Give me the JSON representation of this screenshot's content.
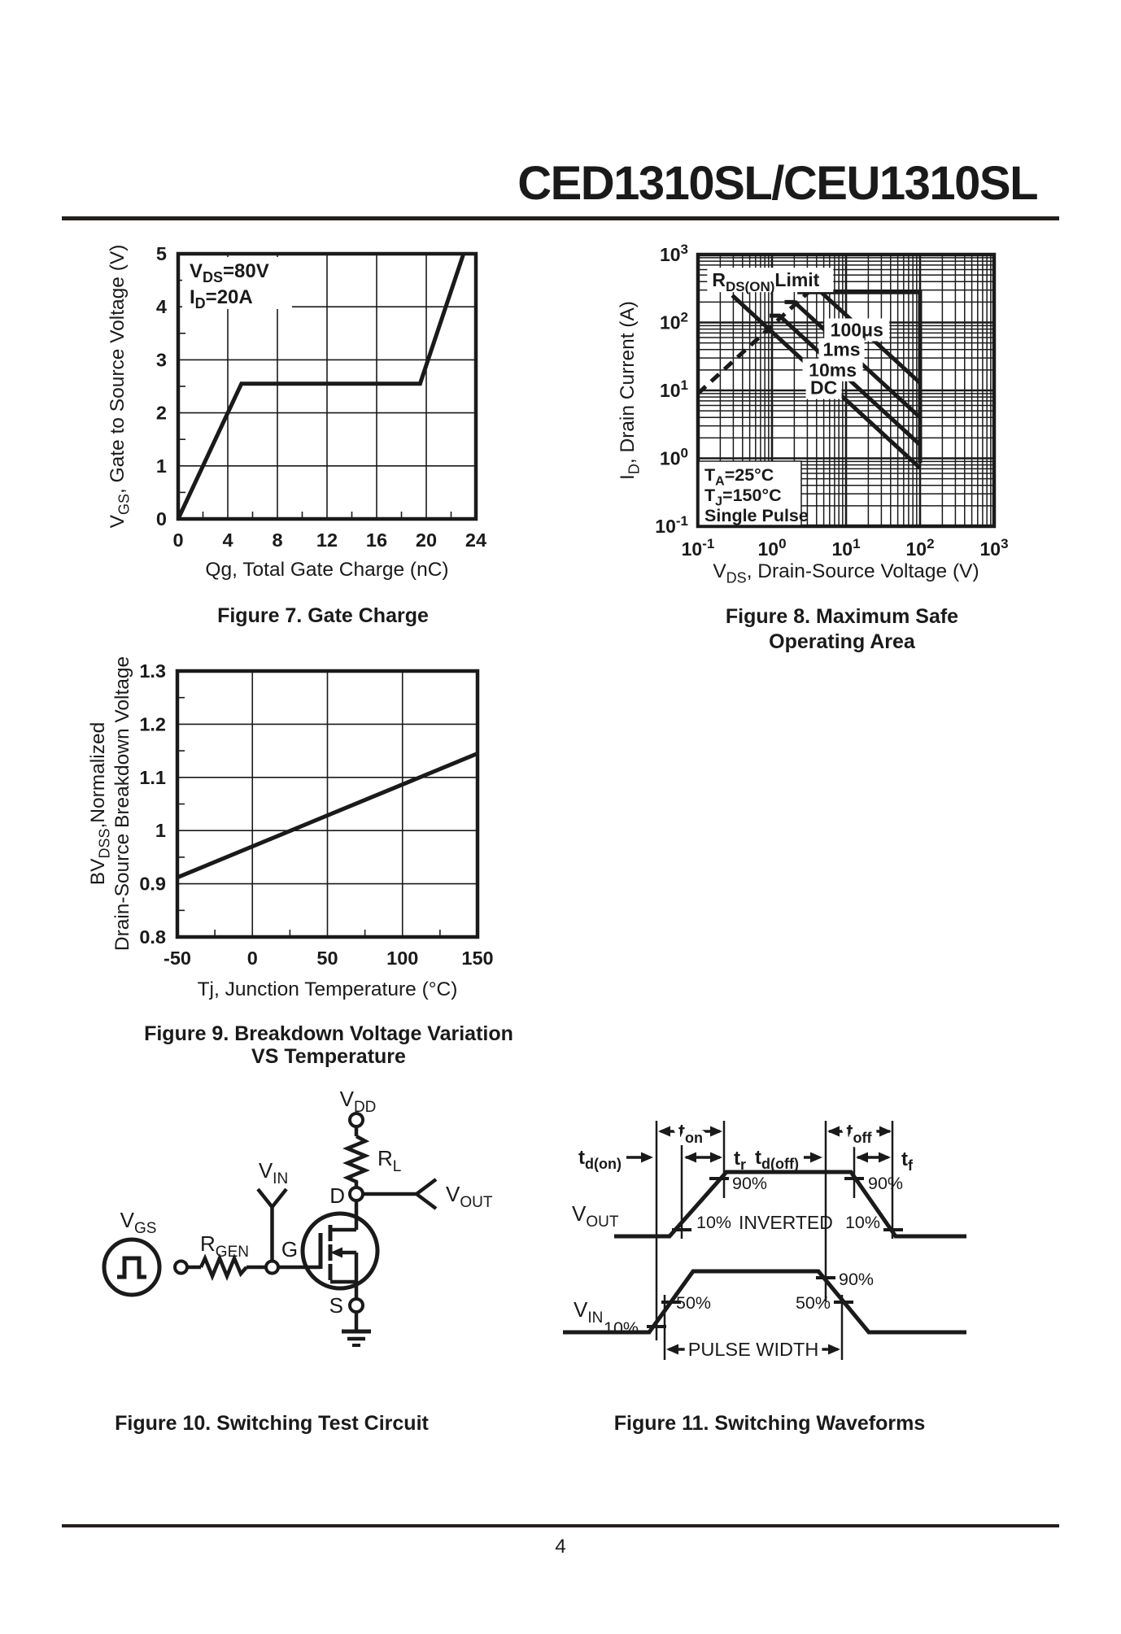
{
  "page": {
    "title": "CED1310SL/CEU1310SL",
    "page_number": "4"
  },
  "chart_data": [
    {
      "id": "fig7",
      "type": "line",
      "title": "Figure 7. Gate Charge",
      "xlabel": "Qg, Total Gate Charge (nC)",
      "ylabel": "V~GS~, Gate to Source Voltage (V)",
      "xlim": [
        0,
        24
      ],
      "ylim": [
        0,
        5
      ],
      "xticks": [
        0,
        4,
        8,
        12,
        16,
        20,
        24
      ],
      "yticks": [
        0,
        1,
        2,
        3,
        4,
        5
      ],
      "grid": "on",
      "annotations": [
        "V~DS~=80V",
        "I~D~=20A"
      ],
      "series": [
        {
          "name": "gate-charge-curve",
          "points": [
            [
              0,
              0
            ],
            [
              5.1,
              2.55
            ],
            [
              19.5,
              2.55
            ],
            [
              23,
              5
            ]
          ]
        }
      ]
    },
    {
      "id": "fig8",
      "type": "line-loglog",
      "title": [
        "Figure 8. Maximum Safe",
        "Operating Area"
      ],
      "xlabel": "V~DS~, Drain-Source Voltage (V)",
      "ylabel": "I~D~, Drain Current (A)",
      "xlim": [
        0.1,
        1000
      ],
      "ylim": [
        0.1,
        1000
      ],
      "xtick_labels": [
        "10^-1^",
        "10^0^",
        "10^1^",
        "10^2^",
        "10^3^"
      ],
      "ytick_labels": [
        "10^-1^",
        "10^0^",
        "10^1^",
        "10^2^",
        "10^3^"
      ],
      "grid": "log both, minors shown",
      "corner_note": [
        "T~A~=25°C",
        "T~J~=150°C",
        "Single Pulse"
      ],
      "rdson_label": "R~DS(ON)~Limit",
      "rdson_label_at": [
        0.155,
        340
      ],
      "curves": [
        {
          "name": "rdson-limit",
          "style": "dashed",
          "points": [
            [
              0.1,
              9
            ],
            [
              3.7,
              333
            ]
          ]
        },
        {
          "name": "envelope-max",
          "points": [
            [
              2.2,
              280
            ],
            [
              100,
              280
            ],
            [
              100,
              0.85
            ]
          ]
        },
        {
          "name": "100us",
          "points": [
            [
              4.6,
              280
            ],
            [
              100,
              12.9
            ]
          ]
        },
        {
          "name": "1ms",
          "points": [
            [
              1.48,
              200
            ],
            [
              2,
              200
            ],
            [
              100,
              4
            ]
          ]
        },
        {
          "name": "10ms",
          "points": [
            [
              0.93,
              126
            ],
            [
              1.26,
              126
            ],
            [
              100,
              1.58
            ]
          ]
        },
        {
          "name": "dc",
          "points": [
            [
              0.29,
              251
            ],
            [
              100,
              0.72
            ]
          ]
        }
      ],
      "curve_labels": [
        {
          "text": "100μs",
          "at": [
            14,
            78
          ],
          "w": 80
        },
        {
          "text": "1ms",
          "at": [
            8.7,
            40
          ],
          "w": 56
        },
        {
          "text": "10ms",
          "at": [
            6.6,
            20
          ],
          "w": 74
        },
        {
          "text": "DC",
          "at": [
            5,
            11
          ],
          "w": 44
        }
      ]
    },
    {
      "id": "fig9",
      "type": "line",
      "title": [
        "Figure 9. Breakdown Voltage Variation",
        "VS Temperature"
      ],
      "xlabel": "Tj, Junction Temperature (°C)",
      "ylabel": [
        "BV~DSS~,Normalized",
        "Drain-Source Breakdown Voltage"
      ],
      "xlim": [
        -50,
        150
      ],
      "ylim": [
        0.8,
        1.3
      ],
      "xticks": [
        -50,
        0,
        50,
        100,
        150
      ],
      "yticks": [
        0.8,
        0.9,
        1.0,
        1.1,
        1.2,
        1.3
      ],
      "ytick_labels": [
        "0.8",
        "0.9",
        "1",
        "1.1",
        "1.2",
        "1.3"
      ],
      "grid": "on",
      "series": [
        {
          "name": "bvdss-curve",
          "points": [
            [
              -50,
              0.912
            ],
            [
              150,
              1.145
            ]
          ]
        }
      ]
    }
  ],
  "fig10": {
    "caption": "Figure 10. Switching Test Circuit",
    "labels": {
      "vdd": "V~DD~",
      "rl": "R~L~",
      "d": "D",
      "vout": "V~OUT~",
      "g": "G",
      "vin": "V~IN~",
      "vgs": "V~GS~",
      "rgen": "R~GEN~",
      "s": "S"
    }
  },
  "fig11": {
    "caption": "Figure 11. Switching Waveforms",
    "labels": {
      "vout": "V~OUT~",
      "vin": "V~IN~",
      "inverted": "INVERTED",
      "pulse_width": "PULSE WIDTH",
      "td_on": "t~d(on)~",
      "t_on": "t~on~",
      "t_r": "t~r~",
      "td_off": "t~d(off)~",
      "t_off": "t~off~",
      "t_f": "t~f~",
      "p90": "90%",
      "p10": "10%",
      "p50": "50%"
    }
  }
}
